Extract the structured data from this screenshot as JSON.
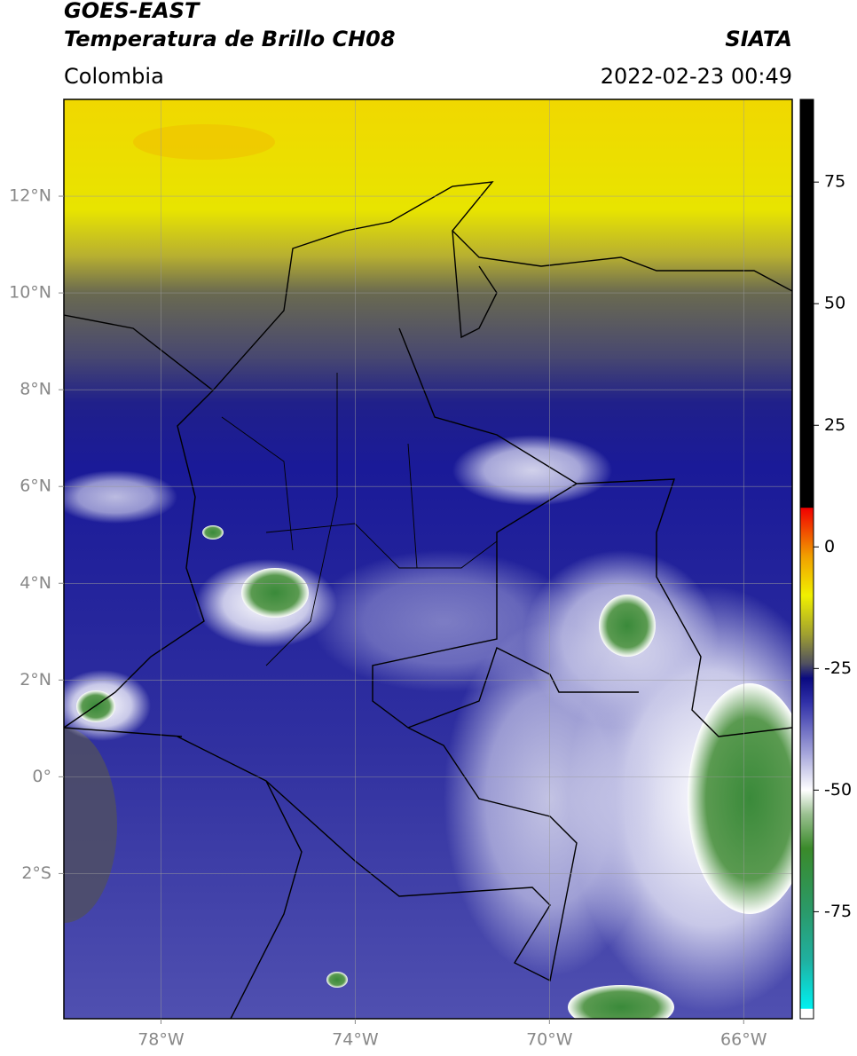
{
  "header": {
    "title": "GOES-EAST",
    "subtitle": "Temperatura de Brillo CH08",
    "source": "SIATA",
    "region": "Colombia",
    "timestamp": "2022-02-23 00:49"
  },
  "chart_data": {
    "type": "map",
    "xlim": [
      -80,
      -65
    ],
    "ylim": [
      -5,
      14
    ],
    "xticks": [
      {
        "value": -78,
        "label": "78°W"
      },
      {
        "value": -74,
        "label": "74°W"
      },
      {
        "value": -70,
        "label": "70°W"
      },
      {
        "value": -66,
        "label": "66°W"
      }
    ],
    "yticks": [
      {
        "value": 12,
        "label": "12°N"
      },
      {
        "value": 10,
        "label": "10°N"
      },
      {
        "value": 8,
        "label": "8°N"
      },
      {
        "value": 6,
        "label": "6°N"
      },
      {
        "value": 4,
        "label": "4°N"
      },
      {
        "value": 2,
        "label": "2°N"
      },
      {
        "value": 0,
        "label": "0°"
      },
      {
        "value": -2,
        "label": "2°S"
      }
    ],
    "grid": true,
    "colorbar": {
      "clim": [
        -97,
        92
      ],
      "ticks": [
        75,
        50,
        25,
        0,
        -25,
        -50,
        -75
      ],
      "colormap": [
        {
          "value": -97,
          "color": "#ffffff"
        },
        {
          "value": -95,
          "color": "#ffffff"
        },
        {
          "value": -94.9,
          "color": "#00f0f0"
        },
        {
          "value": -85,
          "color": "#20b0a0"
        },
        {
          "value": -75,
          "color": "#2a9a6a"
        },
        {
          "value": -62,
          "color": "#3a8a2a"
        },
        {
          "value": -55,
          "color": "#9ac090"
        },
        {
          "value": -50,
          "color": "#ffffff"
        },
        {
          "value": -42,
          "color": "#a0a0d8"
        },
        {
          "value": -32,
          "color": "#3030a8"
        },
        {
          "value": -27,
          "color": "#0a0a80"
        },
        {
          "value": -24,
          "color": "#505060"
        },
        {
          "value": -18,
          "color": "#a0a030"
        },
        {
          "value": -10,
          "color": "#f0f000"
        },
        {
          "value": -2,
          "color": "#f0a000"
        },
        {
          "value": 5,
          "color": "#f03000"
        },
        {
          "value": 8,
          "color": "#f00000"
        },
        {
          "value": 8.1,
          "color": "#000000"
        },
        {
          "value": 92,
          "color": "#000000"
        }
      ]
    }
  }
}
